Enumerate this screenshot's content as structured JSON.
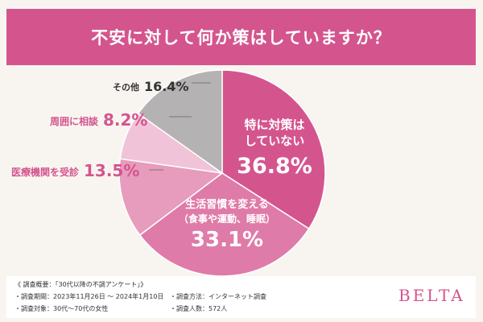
{
  "title": "不安に対して何か策はしていますか？",
  "chart_data": {
    "type": "pie",
    "unit": "%",
    "slices": [
      {
        "label_lines": [
          "特に対策は",
          "していない"
        ],
        "value": 36.8,
        "value_text": "36.8%",
        "color": "#d4558e"
      },
      {
        "label_lines": [
          "生活習慣を変える",
          "（食事や運動、睡眠）"
        ],
        "value": 33.1,
        "value_text": "33.1%",
        "color": "#df7ba8"
      },
      {
        "label_lines": [
          "医療機関を受診"
        ],
        "value": 13.5,
        "value_text": "13.5%",
        "color": "#e79bbd"
      },
      {
        "label_lines": [
          "周囲に相談"
        ],
        "value": 8.2,
        "value_text": "8.2%",
        "color": "#f1c3d8"
      },
      {
        "label_lines": [
          "その他"
        ],
        "value": 16.4,
        "value_text": "16.4%",
        "color": "#b4b2b2"
      }
    ]
  },
  "footer": {
    "overview": "《 調査概要：「30代以降の不調アンケート」》",
    "period": "・調査期間：2023年11月26日 〜 2024年1月10日",
    "target": "・調査対象：30代〜70代の女性",
    "method": "・調査方法：インターネット調査",
    "count": "・調査人数：572人"
  },
  "brand": "BELTA"
}
